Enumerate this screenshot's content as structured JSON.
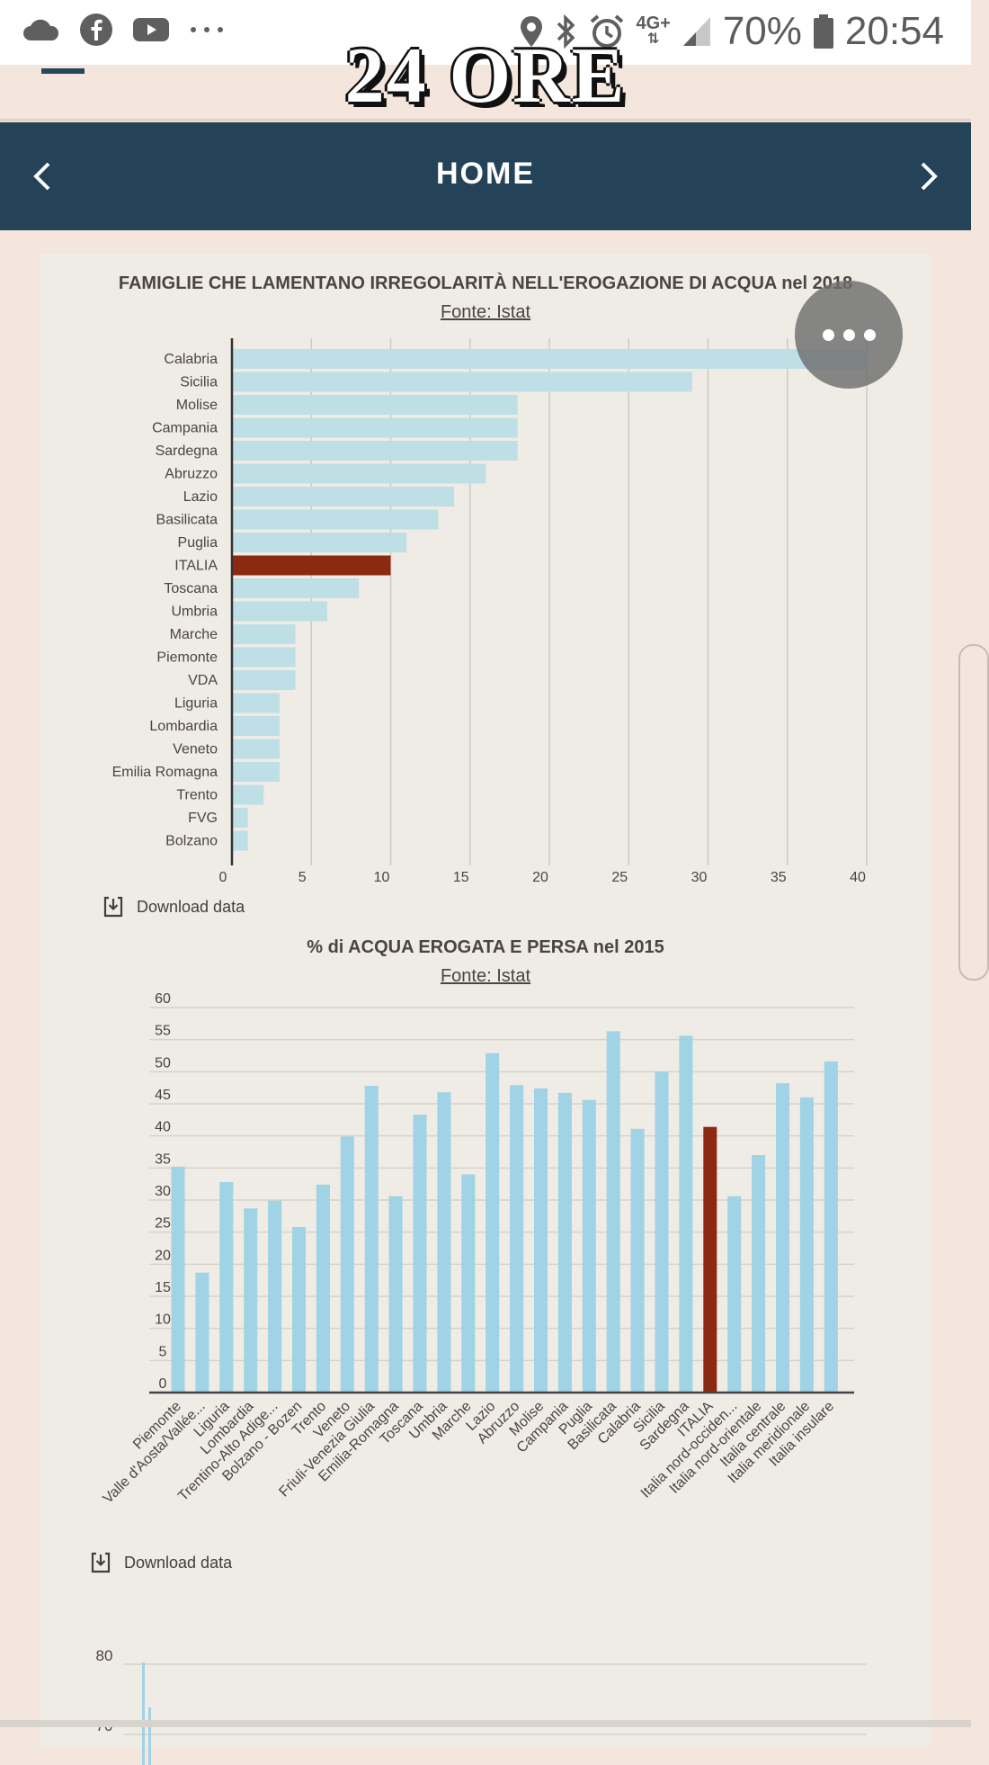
{
  "status_bar": {
    "battery": "70%",
    "time": "20:54",
    "network": "4G+"
  },
  "masthead": {
    "logo_text": "24 ORE"
  },
  "nav": {
    "title": "HOME"
  },
  "chart1": {
    "title": "FAMIGLIE CHE LAMENTANO IRREGOLARITÀ NELL'EROGAZIONE DI ACQUA nel 2018",
    "source": "Fonte: Istat ",
    "download": "Download data"
  },
  "chart2": {
    "title": "% di ACQUA EROGATA E PERSA nel 2015",
    "source": "Fonte: Istat ",
    "download": "Download data"
  },
  "chart3": {
    "ticks": [
      "80",
      "70"
    ]
  },
  "colors": {
    "bar": "#bfdfe6",
    "bar2": "#9fd3e5",
    "highlight": "#8b2a10",
    "nav": "#244358"
  },
  "chart_data": [
    {
      "type": "bar",
      "orientation": "horizontal",
      "categories": [
        "Calabria",
        "Sicilia",
        "Molise",
        "Campania",
        "Sardegna",
        "Abruzzo",
        "Lazio",
        "Basilicata",
        "Puglia",
        "ITALIA",
        "Toscana",
        "Umbria",
        "Marche",
        "Piemonte",
        "VDA",
        "Liguria",
        "Lombardia",
        "Veneto",
        "Emilia Romagna",
        "Trento",
        "FVG",
        "Bolzano"
      ],
      "values": [
        40,
        29,
        18,
        18,
        18,
        16,
        14,
        13,
        11,
        10,
        8,
        6,
        4,
        4,
        4,
        3,
        3,
        3,
        3,
        2,
        1,
        1
      ],
      "highlight": "ITALIA",
      "xlim": [
        0,
        40
      ],
      "xticks": [
        "0",
        "5",
        "10",
        "15",
        "20",
        "25",
        "30",
        "35",
        "40"
      ],
      "grid": true
    },
    {
      "type": "bar",
      "categories": [
        "Piemonte",
        "Valle d'Aosta/Vallée...",
        "Liguria",
        "Lombardia",
        "Trentino-Alto Adige...",
        "Bolzano - Bozen",
        "Trento",
        "Veneto",
        "Friuli-Venezia Giulia",
        "Emilia-Romagna",
        "Toscana",
        "Umbria",
        "Marche",
        "Lazio",
        "Abruzzo",
        "Molise",
        "Campania",
        "Puglia",
        "Basilicata",
        "Calabria",
        "Sicilia",
        "Sardegna",
        "ITALIA",
        "Italia nord-occiden...",
        "Italia nord-orientale",
        "Italia centrale",
        "Italia meridionale",
        "Italia insulare"
      ],
      "values": [
        35.2,
        18.7,
        32.8,
        28.7,
        29.9,
        25.8,
        32.4,
        39.9,
        47.8,
        30.6,
        43.3,
        46.8,
        34.0,
        52.9,
        47.9,
        47.4,
        46.7,
        45.6,
        56.3,
        41.1,
        50.0,
        55.6,
        41.4,
        30.6,
        37.0,
        48.2,
        46.0,
        51.6
      ],
      "highlight": "ITALIA",
      "ylim": [
        0,
        60
      ],
      "yticks": [
        "0",
        "5",
        "10",
        "15",
        "20",
        "25",
        "30",
        "35",
        "40",
        "45",
        "50",
        "55",
        "60"
      ],
      "grid": true
    }
  ]
}
